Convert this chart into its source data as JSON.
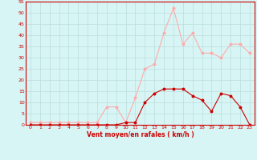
{
  "x": [
    0,
    1,
    2,
    3,
    4,
    5,
    6,
    7,
    8,
    9,
    10,
    11,
    12,
    13,
    14,
    15,
    16,
    17,
    18,
    19,
    20,
    21,
    22,
    23
  ],
  "wind_avg": [
    0,
    0,
    0,
    0,
    0,
    0,
    0,
    0,
    0,
    0,
    1,
    1,
    10,
    14,
    16,
    16,
    16,
    13,
    11,
    6,
    14,
    13,
    8,
    0
  ],
  "wind_gust": [
    1,
    1,
    1,
    1,
    1,
    1,
    1,
    1,
    8,
    8,
    1,
    12,
    25,
    27,
    41,
    52,
    36,
    41,
    32,
    32,
    30,
    36,
    36,
    32
  ],
  "wind_avg_color": "#cc0000",
  "wind_gust_color": "#ffaaaa",
  "bg_color": "#d8f5f5",
  "grid_color": "#bbdddd",
  "axis_color": "#cc0000",
  "xlabel": "Vent moyen/en rafales ( km/h )",
  "ylim": [
    0,
    55
  ],
  "yticks": [
    0,
    5,
    10,
    15,
    20,
    25,
    30,
    35,
    40,
    45,
    50,
    55
  ],
  "xlim": [
    -0.5,
    23.5
  ],
  "xticks": [
    0,
    1,
    2,
    3,
    4,
    5,
    6,
    7,
    8,
    9,
    10,
    11,
    12,
    13,
    14,
    15,
    16,
    17,
    18,
    19,
    20,
    21,
    22,
    23
  ]
}
